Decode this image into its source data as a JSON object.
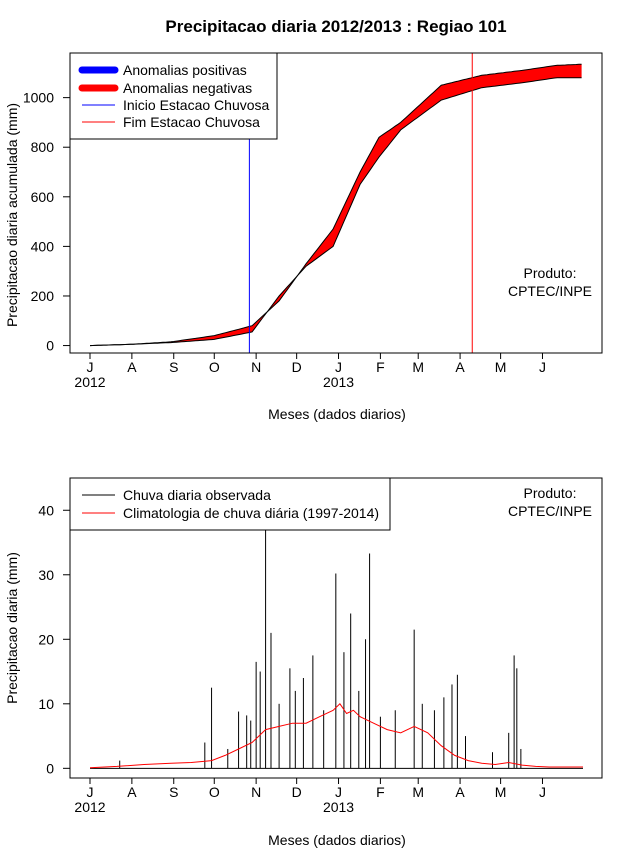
{
  "title": "Precipitacao diaria 2012/2013 : Regiao 101",
  "months": [
    "J",
    "A",
    "S",
    "O",
    "N",
    "D",
    "J",
    "F",
    "M",
    "A",
    "M",
    "J"
  ],
  "years": [
    "2012",
    "2013"
  ],
  "credit": [
    "Produto:",
    "CPTEC/INPE"
  ],
  "chart_data": [
    {
      "type": "area",
      "ylabel": "Precipitacao diaria acumulada (mm)",
      "xlabel": "Meses (dados diarios)",
      "ylim": [
        -30,
        1180
      ],
      "yticks": [
        0,
        200,
        400,
        600,
        800,
        1000
      ],
      "x_days": [
        0,
        30,
        60,
        92,
        120,
        140,
        160,
        180,
        200,
        214,
        230,
        260,
        290,
        320,
        345,
        365
      ],
      "observed_cumulative_mm": [
        0,
        5,
        15,
        40,
        80,
        180,
        330,
        470,
        700,
        840,
        900,
        1050,
        1090,
        1110,
        1130,
        1135
      ],
      "climatology_cumulative_mm": [
        0,
        5,
        12,
        25,
        55,
        200,
        320,
        400,
        650,
        760,
        870,
        990,
        1040,
        1060,
        1080,
        1080
      ],
      "rainy_season_start_day": 118,
      "rainy_season_end_day": 283,
      "legend": [
        {
          "label": "Anomalias positivas",
          "color": "#0000ff"
        },
        {
          "label": "Anomalias negativas",
          "color": "#ff0000"
        },
        {
          "label": "Inicio Estacao Chuvosa",
          "color": "#0000ff"
        },
        {
          "label": "Fim Estacao Chuvosa",
          "color": "#ff0000"
        }
      ]
    },
    {
      "type": "bar",
      "ylabel": "Precipitacao diaria (mm)",
      "xlabel": "Meses (dados diarios)",
      "ylim": [
        -1.5,
        45
      ],
      "yticks": [
        0,
        10,
        20,
        30,
        40
      ],
      "observed_daily_peaks": [
        {
          "day": 22,
          "mm": 1.2
        },
        {
          "day": 85,
          "mm": 4
        },
        {
          "day": 90,
          "mm": 12.5
        },
        {
          "day": 102,
          "mm": 3
        },
        {
          "day": 110,
          "mm": 8.8
        },
        {
          "day": 116,
          "mm": 8.2
        },
        {
          "day": 119,
          "mm": 7.4
        },
        {
          "day": 123,
          "mm": 16.5
        },
        {
          "day": 126,
          "mm": 15
        },
        {
          "day": 130,
          "mm": 37
        },
        {
          "day": 134,
          "mm": 21
        },
        {
          "day": 140,
          "mm": 10
        },
        {
          "day": 148,
          "mm": 15.5
        },
        {
          "day": 152,
          "mm": 12
        },
        {
          "day": 158,
          "mm": 14
        },
        {
          "day": 165,
          "mm": 17.5
        },
        {
          "day": 173,
          "mm": 9
        },
        {
          "day": 182,
          "mm": 30.2
        },
        {
          "day": 188,
          "mm": 18
        },
        {
          "day": 193,
          "mm": 24
        },
        {
          "day": 199,
          "mm": 12
        },
        {
          "day": 204,
          "mm": 20
        },
        {
          "day": 207,
          "mm": 33.3
        },
        {
          "day": 215,
          "mm": 8
        },
        {
          "day": 226,
          "mm": 9
        },
        {
          "day": 240,
          "mm": 21.5
        },
        {
          "day": 246,
          "mm": 10
        },
        {
          "day": 255,
          "mm": 9
        },
        {
          "day": 262,
          "mm": 11
        },
        {
          "day": 268,
          "mm": 13
        },
        {
          "day": 272,
          "mm": 14.5
        },
        {
          "day": 278,
          "mm": 5
        },
        {
          "day": 298,
          "mm": 2.5
        },
        {
          "day": 310,
          "mm": 5.5
        },
        {
          "day": 314,
          "mm": 17.5
        },
        {
          "day": 316,
          "mm": 15.5
        },
        {
          "day": 319,
          "mm": 3
        }
      ],
      "climatology_days": [
        0,
        20,
        40,
        60,
        75,
        90,
        100,
        110,
        120,
        130,
        140,
        150,
        160,
        170,
        180,
        185,
        190,
        195,
        200,
        210,
        220,
        230,
        240,
        250,
        260,
        270,
        280,
        290,
        300,
        310,
        320,
        330,
        340,
        350,
        365
      ],
      "climatology_mm": [
        0.1,
        0.3,
        0.6,
        0.8,
        0.9,
        1.2,
        2.0,
        3.0,
        4.0,
        6.0,
        6.5,
        7.0,
        7.0,
        8.0,
        9.0,
        10.0,
        8.5,
        9.0,
        8.0,
        7.0,
        6.0,
        5.5,
        6.5,
        5.5,
        3.5,
        2.0,
        1.2,
        0.8,
        0.6,
        0.9,
        0.5,
        0.3,
        0.2,
        0.2,
        0.2
      ],
      "legend": [
        {
          "label": "Chuva diaria observada",
          "color": "#000000"
        },
        {
          "label": "Climatologia de chuva diária (1997-2014)",
          "color": "#ff0000"
        }
      ]
    }
  ]
}
